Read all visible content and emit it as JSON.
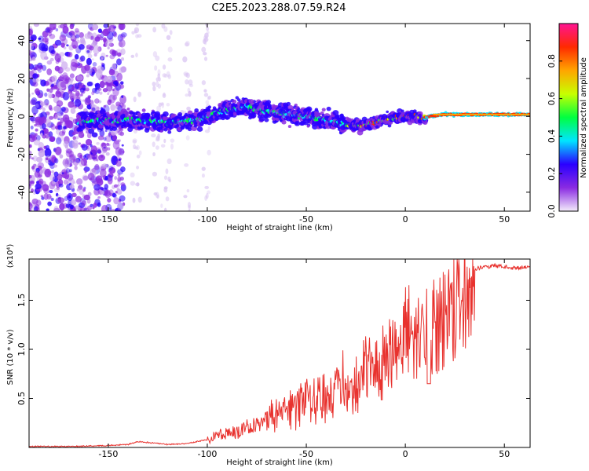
{
  "title": "C2E5.2023.288.07.59.R24",
  "chart_data": [
    {
      "type": "heatmap",
      "xlabel": "Height of straight line (km)",
      "ylabel": "Frequency (Hz)",
      "xlim": [
        -190,
        63
      ],
      "ylim": [
        -50,
        49
      ],
      "xticks": [
        "-150",
        "-100",
        "-50",
        "0",
        "50"
      ],
      "xtick_values": [
        -150,
        -100,
        -50,
        0,
        50
      ],
      "yticks": [
        "-40",
        "-20",
        "0",
        "20",
        "40"
      ],
      "ytick_values": [
        -40,
        -20,
        0,
        20,
        40
      ],
      "noise_region_x": [
        -190,
        -142
      ],
      "ridge": {
        "x": [
          -165,
          -150,
          -140,
          -120,
          -105,
          -95,
          -88,
          -80,
          -70,
          -60,
          -50,
          -40,
          -30,
          -22,
          -15,
          -8,
          0,
          5,
          8,
          12,
          20,
          40,
          62
        ],
        "frequency": [
          -3,
          -2,
          -2,
          -3,
          -2,
          2,
          4,
          5,
          3,
          1,
          0,
          -2,
          -4,
          -5,
          -3,
          -1,
          0,
          0,
          -1,
          0,
          1,
          1,
          1
        ]
      },
      "colorbar": {
        "label": "Normalized spectral amplitude",
        "ticks": [
          "0.0",
          "0.2",
          "0.4",
          "0.6",
          "0.8"
        ],
        "tick_values": [
          0.0,
          0.2,
          0.4,
          0.6,
          0.8
        ],
        "range": [
          0,
          1
        ],
        "colors": [
          "#f4ecfb",
          "#8a2be2",
          "#2a00ff",
          "#00e5ff",
          "#00ff40",
          "#c8ff00",
          "#ffa500",
          "#ff2a00",
          "#ff1493"
        ]
      }
    },
    {
      "type": "line",
      "xlabel": "Height of straight line (km)",
      "ylabel": "SNR (10 * v/v)",
      "multiplier": "(x10⁴)",
      "xlim": [
        -190,
        63
      ],
      "ylim": [
        0,
        1.92
      ],
      "xticks": [
        "-150",
        "-100",
        "-50",
        "0",
        "50"
      ],
      "xtick_values": [
        -150,
        -100,
        -50,
        0,
        50
      ],
      "yticks": [
        "0.5",
        "1.0",
        "1.5"
      ],
      "ytick_values": [
        0.5,
        1.0,
        1.5
      ],
      "color": "#e8322e",
      "x": [
        -190,
        -170,
        -150,
        -140,
        -135,
        -130,
        -120,
        -110,
        -100,
        -95,
        -90,
        -85,
        -80,
        -75,
        -70,
        -65,
        -60,
        -55,
        -50,
        -45,
        -40,
        -35,
        -30,
        -25,
        -20,
        -15,
        -10,
        -5,
        0,
        5,
        10,
        15,
        20,
        25,
        30,
        35,
        40,
        45,
        50,
        55,
        60,
        63
      ],
      "y": [
        0.01,
        0.01,
        0.02,
        0.03,
        0.06,
        0.05,
        0.03,
        0.04,
        0.08,
        0.14,
        0.15,
        0.17,
        0.22,
        0.25,
        0.3,
        0.38,
        0.4,
        0.45,
        0.52,
        0.5,
        0.62,
        0.65,
        0.7,
        0.68,
        0.85,
        0.9,
        0.98,
        1.1,
        1.2,
        1.22,
        1.3,
        1.35,
        1.45,
        1.58,
        1.7,
        1.82,
        1.84,
        1.85,
        1.84,
        1.83,
        1.84,
        1.85
      ]
    }
  ]
}
